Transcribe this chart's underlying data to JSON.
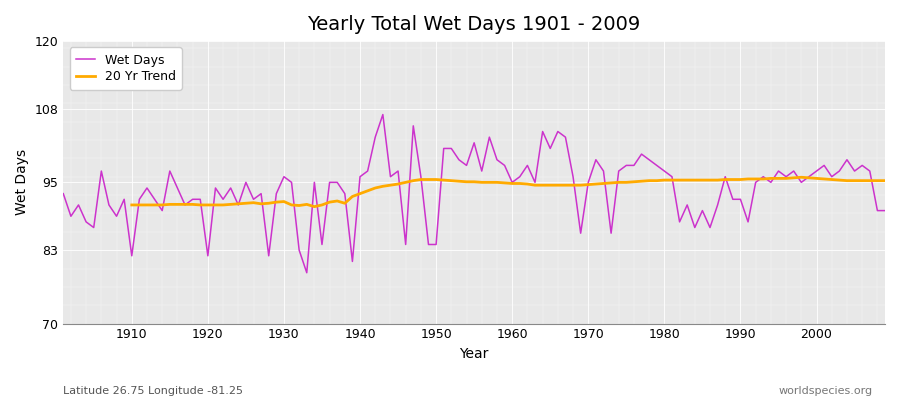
{
  "title": "Yearly Total Wet Days 1901 - 2009",
  "xlabel": "Year",
  "ylabel": "Wet Days",
  "subtitle_left": "Latitude 26.75 Longitude -81.25",
  "subtitle_right": "worldspecies.org",
  "ylim": [
    70,
    120
  ],
  "yticks": [
    70,
    83,
    95,
    108,
    120
  ],
  "xlim": [
    1901,
    2009
  ],
  "xticks": [
    1910,
    1920,
    1930,
    1940,
    1950,
    1960,
    1970,
    1980,
    1990,
    2000
  ],
  "line_color": "#cc33cc",
  "trend_color": "#ffaa00",
  "bg_color_top": "#dcdcdc",
  "bg_color_mid": "#e8e8e8",
  "bg_color_bot": "#dcdcdc",
  "years": [
    1901,
    1902,
    1903,
    1904,
    1905,
    1906,
    1907,
    1908,
    1909,
    1910,
    1911,
    1912,
    1913,
    1914,
    1915,
    1916,
    1917,
    1918,
    1919,
    1920,
    1921,
    1922,
    1923,
    1924,
    1925,
    1926,
    1927,
    1928,
    1929,
    1930,
    1931,
    1932,
    1933,
    1934,
    1935,
    1936,
    1937,
    1938,
    1939,
    1940,
    1941,
    1942,
    1943,
    1944,
    1945,
    1946,
    1947,
    1948,
    1949,
    1950,
    1951,
    1952,
    1953,
    1954,
    1955,
    1956,
    1957,
    1958,
    1959,
    1960,
    1961,
    1962,
    1963,
    1964,
    1965,
    1966,
    1967,
    1968,
    1969,
    1970,
    1971,
    1972,
    1973,
    1974,
    1975,
    1976,
    1977,
    1978,
    1979,
    1980,
    1981,
    1982,
    1983,
    1984,
    1985,
    1986,
    1987,
    1988,
    1989,
    1990,
    1991,
    1992,
    1993,
    1994,
    1995,
    1996,
    1997,
    1998,
    1999,
    2000,
    2001,
    2002,
    2003,
    2004,
    2005,
    2006,
    2007,
    2008,
    2009
  ],
  "wet_days": [
    93,
    89,
    91,
    88,
    87,
    97,
    91,
    89,
    92,
    82,
    92,
    94,
    92,
    90,
    97,
    94,
    91,
    92,
    92,
    82,
    94,
    92,
    94,
    91,
    95,
    92,
    93,
    82,
    93,
    96,
    95,
    83,
    79,
    95,
    84,
    95,
    95,
    93,
    81,
    96,
    97,
    103,
    107,
    96,
    97,
    84,
    105,
    96,
    84,
    84,
    101,
    101,
    99,
    98,
    102,
    97,
    103,
    99,
    98,
    95,
    96,
    98,
    95,
    104,
    101,
    104,
    103,
    96,
    86,
    95,
    99,
    97,
    86,
    97,
    98,
    98,
    100,
    99,
    98,
    97,
    96,
    88,
    91,
    87,
    90,
    87,
    91,
    96,
    92,
    92,
    88,
    95,
    96,
    95,
    97,
    96,
    97,
    95,
    96,
    97,
    98,
    96,
    97,
    99,
    97,
    98,
    97,
    90,
    90
  ],
  "trend_start_year": 1910,
  "trend_values": [
    91.0,
    91.0,
    91.0,
    91.0,
    91.0,
    91.1,
    91.1,
    91.1,
    91.1,
    91.0,
    91.0,
    91.0,
    91.0,
    91.1,
    91.2,
    91.3,
    91.4,
    91.2,
    91.3,
    91.5,
    91.6,
    91.0,
    90.9,
    91.1,
    90.7,
    91.0,
    91.5,
    91.7,
    91.3,
    92.5,
    93.0,
    93.5,
    94.0,
    94.3,
    94.5,
    94.7,
    95.0,
    95.3,
    95.5,
    95.5,
    95.5,
    95.4,
    95.3,
    95.2,
    95.1,
    95.1,
    95.0,
    95.0,
    95.0,
    94.9,
    94.8,
    94.8,
    94.7,
    94.5,
    94.5,
    94.5,
    94.5,
    94.5,
    94.5,
    94.5,
    94.6,
    94.7,
    94.8,
    94.9,
    95.0,
    95.0,
    95.1,
    95.2,
    95.3,
    95.3,
    95.4,
    95.4,
    95.4,
    95.4,
    95.4,
    95.4,
    95.4,
    95.4,
    95.5,
    95.5,
    95.5,
    95.6,
    95.6,
    95.6,
    95.7,
    95.7,
    95.7,
    95.8,
    95.9,
    95.8,
    95.7,
    95.6,
    95.5,
    95.4,
    95.3,
    95.3,
    95.3,
    95.3,
    95.3,
    95.3
  ]
}
